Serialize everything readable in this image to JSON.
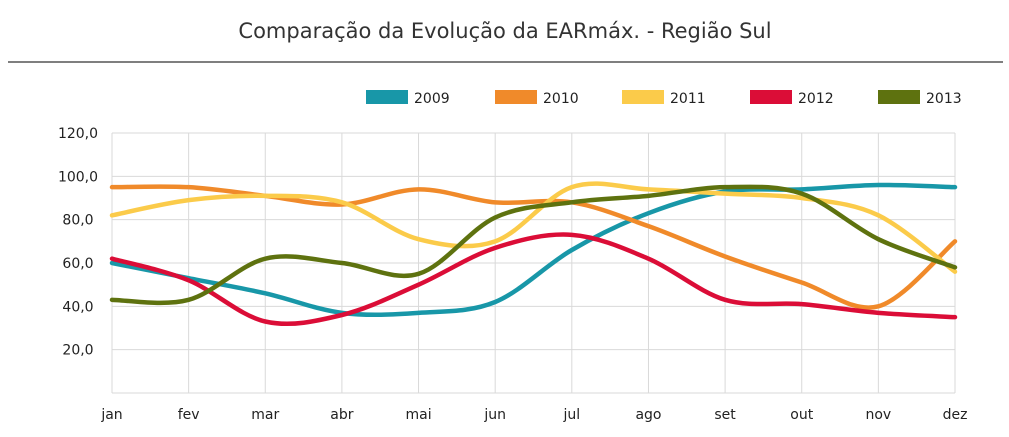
{
  "chart_data": {
    "type": "line",
    "title": "Comparação da Evolução da EARmáx. - Região Sul",
    "xlabel": "",
    "ylabel": "",
    "categories": [
      "jan",
      "fev",
      "mar",
      "abr",
      "mai",
      "jun",
      "jul",
      "ago",
      "set",
      "out",
      "nov",
      "dez"
    ],
    "yticks": [
      "20,0",
      "40,0",
      "60,0",
      "80,0",
      "100,0",
      "120,0"
    ],
    "ylim": [
      0,
      120
    ],
    "grid": true,
    "legend_position": "top-right",
    "series": [
      {
        "name": "2009",
        "color": "#1897a8",
        "values": [
          60,
          53,
          46,
          37,
          37,
          42,
          66,
          83,
          93,
          94,
          96,
          95
        ]
      },
      {
        "name": "2010",
        "color": "#f08a2a",
        "values": [
          95,
          95,
          91,
          87,
          94,
          88,
          88,
          77,
          63,
          51,
          40,
          70
        ]
      },
      {
        "name": "2011",
        "color": "#fbcb4a",
        "values": [
          82,
          89,
          91,
          88,
          71,
          70,
          95,
          94,
          92,
          90,
          82,
          56
        ]
      },
      {
        "name": "2012",
        "color": "#db0d37",
        "values": [
          62,
          52,
          33,
          36,
          50,
          67,
          73,
          62,
          43,
          41,
          37,
          35
        ]
      },
      {
        "name": "2013",
        "color": "#5e720f",
        "values": [
          43,
          43,
          62,
          60,
          55,
          81,
          88,
          91,
          95,
          92,
          71,
          58
        ]
      }
    ]
  }
}
